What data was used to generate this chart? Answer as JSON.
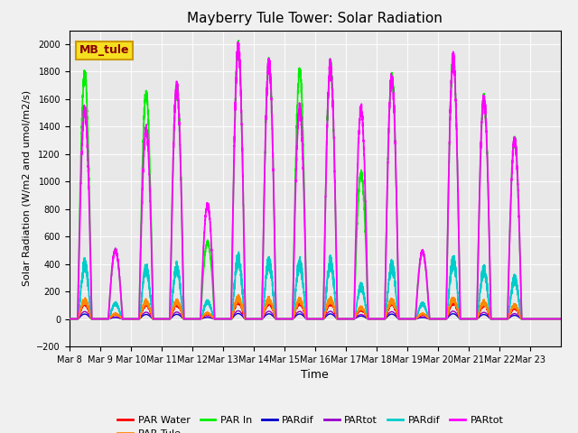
{
  "title": "Mayberry Tule Tower: Solar Radiation",
  "xlabel": "Time",
  "ylabel": "Solar Radiation (W/m2 and umol/m2/s)",
  "ylim": [
    -200,
    2100
  ],
  "yticks": [
    -200,
    0,
    200,
    400,
    600,
    800,
    1000,
    1200,
    1400,
    1600,
    1800,
    2000
  ],
  "n_days": 16,
  "series": {
    "PAR Water": {
      "color": "#ff0000",
      "lw": 1.0,
      "zorder": 4
    },
    "PAR Tule": {
      "color": "#ff8800",
      "lw": 1.0,
      "zorder": 4
    },
    "PAR In": {
      "color": "#00ee00",
      "lw": 1.2,
      "zorder": 5
    },
    "PARdif_blue": {
      "color": "#0000cc",
      "lw": 1.0,
      "zorder": 2
    },
    "PARtot_purple": {
      "color": "#9900cc",
      "lw": 1.0,
      "zorder": 2
    },
    "PARdif_cyan": {
      "color": "#00cccc",
      "lw": 1.2,
      "zorder": 3
    },
    "PARtot_mag": {
      "color": "#ff00ff",
      "lw": 1.3,
      "zorder": 6
    }
  },
  "legend_entries": [
    {
      "label": "PAR Water",
      "color": "#ff0000"
    },
    {
      "label": "PAR Tule",
      "color": "#ff8800"
    },
    {
      "label": "PAR In",
      "color": "#00ee00"
    },
    {
      "label": "PARdif",
      "color": "#0000cc"
    },
    {
      "label": "PARtot",
      "color": "#9900cc"
    },
    {
      "label": "PARdif",
      "color": "#00cccc"
    },
    {
      "label": "PARtot",
      "color": "#ff00ff"
    }
  ],
  "inset_text": "MB_tule",
  "inset_facecolor": "#f5e020",
  "inset_edgecolor": "#cc9900",
  "inset_textcolor": "#8B0000",
  "bg_color": "#e8e8e8",
  "fig_facecolor": "#f0f0f0",
  "day_peaks_mag": [
    1520,
    500,
    1380,
    1680,
    830,
    1970,
    1860,
    1530,
    1840,
    1530,
    1760,
    490,
    1890,
    1600,
    1300
  ],
  "day_peaks_green": [
    1780,
    500,
    1640,
    1680,
    560,
    1970,
    1860,
    1810,
    1840,
    1060,
    1760,
    490,
    1890,
    1600,
    1300
  ],
  "x_tick_labels": [
    "Mar 8",
    "Mar 9",
    "Mar 10",
    "Mar 11",
    "Mar 12",
    "Mar 13",
    "Mar 14",
    "Mar 15",
    "Mar 16",
    "Mar 17",
    "Mar 18",
    "Mar 19",
    "Mar 20",
    "Mar 21",
    "Mar 22",
    "Mar 23"
  ]
}
